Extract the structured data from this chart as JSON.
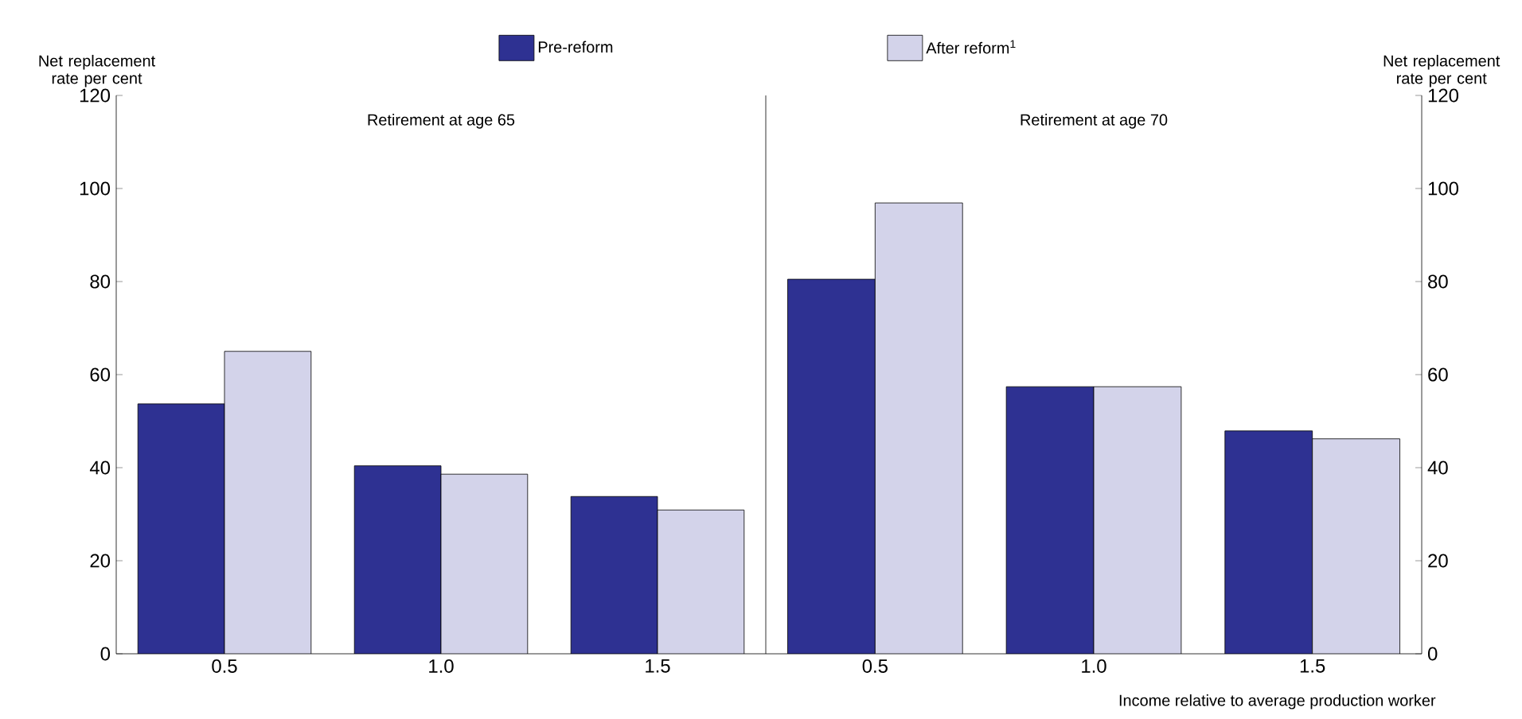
{
  "chart_data": [
    {
      "type": "bar",
      "title": "Retirement at age 65",
      "ylabel": "Net replacement rate per cent",
      "categories": [
        "0.5",
        "1.0",
        "1.5"
      ],
      "ylim": [
        0,
        120
      ],
      "yticks": [
        0,
        20,
        40,
        60,
        80,
        100,
        120
      ],
      "legend": "top",
      "grid": false,
      "series": [
        {
          "name": "Pre-reform",
          "color": "#2e3192",
          "values": [
            53.7,
            40.4,
            33.8
          ]
        },
        {
          "name": "After reform$^{1}$",
          "color": "#d3d3ea",
          "values": [
            65,
            38.6,
            30.9
          ]
        }
      ]
    },
    {
      "type": "bar",
      "title": "Retirement at age 70",
      "ylabel": "Net replacement rate per cent",
      "xlabel": "Income relative to average production worker",
      "categories": [
        "0.5",
        "1.0",
        "1.5"
      ],
      "ylim": [
        0,
        120
      ],
      "yticks": [
        0,
        20,
        40,
        60,
        80,
        100,
        120
      ],
      "legend": false,
      "grid": false,
      "series": [
        {
          "color": "#2e3192",
          "values": [
            80.5,
            57.4,
            47.9
          ]
        },
        {
          "color": "#d3d3ea",
          "values": [
            96.9,
            57.4,
            46.2
          ]
        }
      ]
    }
  ]
}
